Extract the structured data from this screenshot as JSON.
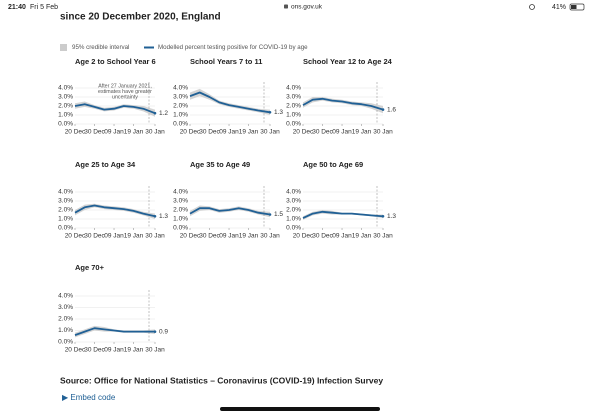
{
  "status_bar": {
    "time": "21:40",
    "date": "Fri 5 Feb",
    "url": "ons.gov.uk",
    "battery": "41%"
  },
  "heading": "since 20 December 2020, England",
  "legend": [
    {
      "name": "95% credible interval",
      "color": "#cccccc"
    },
    {
      "name": "Modelled percent testing positive for COVID-19 by age",
      "color": "#206095"
    }
  ],
  "annotation": [
    "After 27 January 2021,",
    "estimates have greater",
    "uncertainty"
  ],
  "source": "Source: Office for National Statistics – Coronavirus (COVID-19) Infection Survey",
  "embed": "▶ Embed code",
  "chart_data": [
    {
      "type": "line",
      "title": "Age 2 to School Year 6",
      "x": [
        "20 Dec",
        "25 Dec",
        "30 Dec",
        "04 Jan",
        "09 Jan",
        "14 Jan",
        "19 Jan",
        "24 Jan",
        "30 Jan"
      ],
      "xlim": [
        "20 Dec",
        "30 Jan"
      ],
      "xticks": [
        "20 Dec",
        "30 Dec",
        "09 Jan",
        "19 Jan",
        "30 Jan"
      ],
      "ylim": [
        0,
        4
      ],
      "yticks": [
        {
          "value": 0,
          "label": "0.0%"
        },
        {
          "value": 1,
          "label": "1.0%"
        },
        {
          "value": 2,
          "label": "2.0%"
        },
        {
          "value": 3,
          "label": "3.0%"
        },
        {
          "value": 4,
          "label": "4.0%"
        }
      ],
      "values": [
        2.0,
        2.2,
        1.9,
        1.6,
        1.7,
        2.0,
        1.9,
        1.7,
        1.2
      ],
      "lower": [
        1.7,
        1.9,
        1.7,
        1.4,
        1.5,
        1.8,
        1.7,
        1.4,
        0.8
      ],
      "upper": [
        2.3,
        2.5,
        2.1,
        1.8,
        1.9,
        2.2,
        2.1,
        2.0,
        1.6
      ]
    },
    {
      "type": "line",
      "title": "School Years 7 to 11",
      "x": [
        "20 Dec",
        "25 Dec",
        "30 Dec",
        "04 Jan",
        "09 Jan",
        "14 Jan",
        "19 Jan",
        "24 Jan",
        "30 Jan"
      ],
      "xlim": [
        "20 Dec",
        "30 Jan"
      ],
      "xticks": [
        "20 Dec",
        "30 Dec",
        "09 Jan",
        "19 Jan",
        "30 Jan"
      ],
      "ylim": [
        0,
        4
      ],
      "yticks": [
        {
          "value": 0,
          "label": "0.0%"
        },
        {
          "value": 1,
          "label": "1.0%"
        },
        {
          "value": 2,
          "label": "2.0%"
        },
        {
          "value": 3,
          "label": "3.0%"
        },
        {
          "value": 4,
          "label": "4.0%"
        }
      ],
      "values": [
        3.1,
        3.5,
        3.0,
        2.4,
        2.1,
        1.9,
        1.7,
        1.5,
        1.3
      ],
      "lower": [
        2.7,
        3.1,
        2.7,
        2.2,
        1.9,
        1.7,
        1.5,
        1.3,
        1.0
      ],
      "upper": [
        3.5,
        3.9,
        3.3,
        2.6,
        2.3,
        2.1,
        1.9,
        1.7,
        1.6
      ]
    },
    {
      "type": "line",
      "title": "School Year 12 to Age 24",
      "x": [
        "20 Dec",
        "25 Dec",
        "30 Dec",
        "04 Jan",
        "09 Jan",
        "14 Jan",
        "19 Jan",
        "24 Jan",
        "30 Jan"
      ],
      "xlim": [
        "20 Dec",
        "30 Jan"
      ],
      "xticks": [
        "20 Dec",
        "30 Dec",
        "09 Jan",
        "19 Jan",
        "30 Jan"
      ],
      "ylim": [
        0,
        4
      ],
      "yticks": [
        {
          "value": 0,
          "label": "0.0%"
        },
        {
          "value": 1,
          "label": "1.0%"
        },
        {
          "value": 2,
          "label": "2.0%"
        },
        {
          "value": 3,
          "label": "3.0%"
        },
        {
          "value": 4,
          "label": "4.0%"
        }
      ],
      "values": [
        2.1,
        2.7,
        2.8,
        2.6,
        2.5,
        2.3,
        2.2,
        2.0,
        1.6
      ],
      "lower": [
        1.8,
        2.4,
        2.6,
        2.4,
        2.3,
        2.1,
        2.0,
        1.7,
        1.2
      ],
      "upper": [
        2.4,
        3.0,
        3.0,
        2.8,
        2.7,
        2.5,
        2.4,
        2.3,
        2.0
      ]
    },
    {
      "type": "line",
      "title": "Age 25 to Age 34",
      "x": [
        "20 Dec",
        "25 Dec",
        "30 Dec",
        "04 Jan",
        "09 Jan",
        "14 Jan",
        "19 Jan",
        "24 Jan",
        "30 Jan"
      ],
      "xlim": [
        "20 Dec",
        "30 Jan"
      ],
      "xticks": [
        "20 Dec",
        "30 Dec",
        "09 Jan",
        "19 Jan",
        "30 Jan"
      ],
      "ylim": [
        0,
        4
      ],
      "yticks": [
        {
          "value": 0,
          "label": "0.0%"
        },
        {
          "value": 1,
          "label": "1.0%"
        },
        {
          "value": 2,
          "label": "2.0%"
        },
        {
          "value": 3,
          "label": "3.0%"
        },
        {
          "value": 4,
          "label": "4.0%"
        }
      ],
      "values": [
        1.7,
        2.3,
        2.5,
        2.3,
        2.2,
        2.1,
        1.9,
        1.6,
        1.3
      ],
      "lower": [
        1.4,
        2.0,
        2.3,
        2.1,
        2.0,
        1.9,
        1.7,
        1.4,
        1.0
      ],
      "upper": [
        2.0,
        2.6,
        2.7,
        2.5,
        2.4,
        2.3,
        2.1,
        1.8,
        1.6
      ]
    },
    {
      "type": "line",
      "title": "Age 35 to Age 49",
      "x": [
        "20 Dec",
        "25 Dec",
        "30 Dec",
        "04 Jan",
        "09 Jan",
        "14 Jan",
        "19 Jan",
        "24 Jan",
        "30 Jan"
      ],
      "xlim": [
        "20 Dec",
        "30 Jan"
      ],
      "xticks": [
        "20 Dec",
        "30 Dec",
        "09 Jan",
        "19 Jan",
        "30 Jan"
      ],
      "ylim": [
        0,
        4
      ],
      "yticks": [
        {
          "value": 0,
          "label": "0.0%"
        },
        {
          "value": 1,
          "label": "1.0%"
        },
        {
          "value": 2,
          "label": "2.0%"
        },
        {
          "value": 3,
          "label": "3.0%"
        },
        {
          "value": 4,
          "label": "4.0%"
        }
      ],
      "values": [
        1.6,
        2.2,
        2.2,
        1.9,
        2.0,
        2.2,
        2.0,
        1.7,
        1.5
      ],
      "lower": [
        1.3,
        1.9,
        2.0,
        1.7,
        1.8,
        2.0,
        1.8,
        1.5,
        1.2
      ],
      "upper": [
        1.9,
        2.5,
        2.4,
        2.1,
        2.2,
        2.4,
        2.2,
        1.9,
        1.8
      ]
    },
    {
      "type": "line",
      "title": "Age 50 to Age 69",
      "x": [
        "20 Dec",
        "25 Dec",
        "30 Dec",
        "04 Jan",
        "09 Jan",
        "14 Jan",
        "19 Jan",
        "24 Jan",
        "30 Jan"
      ],
      "xlim": [
        "20 Dec",
        "30 Jan"
      ],
      "xticks": [
        "20 Dec",
        "30 Dec",
        "09 Jan",
        "19 Jan",
        "30 Jan"
      ],
      "ylim": [
        0,
        4
      ],
      "yticks": [
        {
          "value": 0,
          "label": "0.0%"
        },
        {
          "value": 1,
          "label": "1.0%"
        },
        {
          "value": 2,
          "label": "2.0%"
        },
        {
          "value": 3,
          "label": "3.0%"
        },
        {
          "value": 4,
          "label": "4.0%"
        }
      ],
      "values": [
        1.1,
        1.6,
        1.8,
        1.7,
        1.6,
        1.6,
        1.5,
        1.4,
        1.3
      ],
      "lower": [
        0.9,
        1.4,
        1.6,
        1.5,
        1.5,
        1.5,
        1.4,
        1.3,
        1.1
      ],
      "upper": [
        1.3,
        1.8,
        2.0,
        1.9,
        1.7,
        1.7,
        1.6,
        1.5,
        1.5
      ]
    },
    {
      "type": "line",
      "title": "Age 70+",
      "x": [
        "20 Dec",
        "25 Dec",
        "30 Dec",
        "04 Jan",
        "09 Jan",
        "14 Jan",
        "19 Jan",
        "24 Jan",
        "30 Jan"
      ],
      "xlim": [
        "20 Dec",
        "30 Jan"
      ],
      "xticks": [
        "20 Dec",
        "30 Dec",
        "09 Jan",
        "19 Jan",
        "30 Jan"
      ],
      "ylim": [
        0,
        4
      ],
      "yticks": [
        {
          "value": 0,
          "label": "0.0%"
        },
        {
          "value": 1,
          "label": "1.0%"
        },
        {
          "value": 2,
          "label": "2.0%"
        },
        {
          "value": 3,
          "label": "3.0%"
        },
        {
          "value": 4,
          "label": "4.0%"
        }
      ],
      "values": [
        0.6,
        0.9,
        1.2,
        1.1,
        1.0,
        0.9,
        0.9,
        0.9,
        0.9
      ],
      "lower": [
        0.4,
        0.7,
        1.0,
        0.9,
        0.9,
        0.8,
        0.8,
        0.8,
        0.7
      ],
      "upper": [
        0.8,
        1.1,
        1.4,
        1.3,
        1.1,
        1.0,
        1.0,
        1.0,
        1.1
      ]
    }
  ]
}
